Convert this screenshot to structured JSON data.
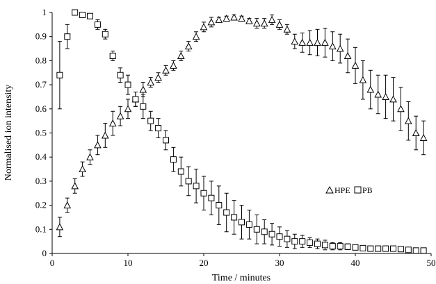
{
  "chart_data": {
    "type": "scatter",
    "title": "",
    "xlabel": "Time / minutes",
    "ylabel": "Normalised ion intensity",
    "xlim": [
      0,
      50
    ],
    "ylim": [
      0,
      1
    ],
    "x_ticks": [
      0,
      10,
      20,
      30,
      40,
      50
    ],
    "y_ticks": [
      0,
      0.1,
      0.2,
      0.3,
      0.4,
      0.5,
      0.6,
      0.7,
      0.8,
      0.9,
      1
    ],
    "grid": false,
    "legend_position": "right-middle",
    "series": [
      {
        "name": "HPE",
        "marker": "triangle",
        "x": [
          1,
          2,
          3,
          4,
          5,
          6,
          7,
          8,
          9,
          10,
          11,
          12,
          13,
          14,
          15,
          16,
          17,
          18,
          19,
          20,
          21,
          22,
          23,
          24,
          25,
          26,
          27,
          28,
          29,
          30,
          31,
          32,
          33,
          34,
          35,
          36,
          37,
          38,
          39,
          40,
          41,
          42,
          43,
          44,
          45,
          46,
          47,
          48,
          49
        ],
        "y": [
          0.11,
          0.2,
          0.28,
          0.35,
          0.4,
          0.45,
          0.49,
          0.54,
          0.57,
          0.6,
          0.64,
          0.68,
          0.71,
          0.73,
          0.76,
          0.78,
          0.82,
          0.86,
          0.9,
          0.94,
          0.96,
          0.97,
          0.975,
          0.98,
          0.975,
          0.965,
          0.955,
          0.955,
          0.97,
          0.95,
          0.93,
          0.88,
          0.875,
          0.875,
          0.875,
          0.875,
          0.86,
          0.85,
          0.82,
          0.78,
          0.72,
          0.68,
          0.66,
          0.65,
          0.64,
          0.6,
          0.55,
          0.5,
          0.48
        ],
        "err": [
          0.04,
          0.03,
          0.03,
          0.03,
          0.03,
          0.04,
          0.05,
          0.05,
          0.04,
          0.04,
          0.03,
          0.03,
          0.02,
          0.02,
          0.02,
          0.02,
          0.02,
          0.02,
          0.02,
          0.02,
          0.02,
          0.01,
          0.01,
          0.01,
          0.01,
          0.01,
          0.02,
          0.02,
          0.02,
          0.02,
          0.02,
          0.03,
          0.04,
          0.05,
          0.055,
          0.06,
          0.06,
          0.06,
          0.07,
          0.075,
          0.08,
          0.08,
          0.08,
          0.09,
          0.09,
          0.09,
          0.08,
          0.07,
          0.07
        ]
      },
      {
        "name": "PB",
        "marker": "square",
        "x": [
          1,
          2,
          3,
          4,
          5,
          6,
          7,
          8,
          9,
          10,
          11,
          12,
          13,
          14,
          15,
          16,
          17,
          18,
          19,
          20,
          21,
          22,
          23,
          24,
          25,
          26,
          27,
          28,
          29,
          30,
          31,
          32,
          33,
          34,
          35,
          36,
          37,
          38,
          39,
          40,
          41,
          42,
          43,
          44,
          45,
          46,
          47,
          48,
          49
        ],
        "y": [
          0.74,
          0.9,
          1.0,
          0.99,
          0.985,
          0.95,
          0.91,
          0.82,
          0.74,
          0.7,
          0.64,
          0.61,
          0.55,
          0.52,
          0.47,
          0.39,
          0.34,
          0.3,
          0.28,
          0.25,
          0.23,
          0.2,
          0.17,
          0.15,
          0.13,
          0.12,
          0.1,
          0.09,
          0.08,
          0.07,
          0.06,
          0.05,
          0.05,
          0.045,
          0.04,
          0.035,
          0.03,
          0.03,
          0.028,
          0.025,
          0.022,
          0.02,
          0.02,
          0.02,
          0.02,
          0.018,
          0.015,
          0.012,
          0.012
        ],
        "err": [
          0.14,
          0.05,
          0.01,
          0.01,
          0.01,
          0.02,
          0.02,
          0.02,
          0.03,
          0.04,
          0.03,
          0.05,
          0.04,
          0.04,
          0.04,
          0.05,
          0.06,
          0.06,
          0.07,
          0.07,
          0.07,
          0.08,
          0.08,
          0.07,
          0.07,
          0.06,
          0.06,
          0.05,
          0.045,
          0.04,
          0.035,
          0.03,
          0.025,
          0.02,
          0.02,
          0.02,
          0.015,
          0.015,
          0.012,
          0.01,
          0.01,
          0.01,
          0.008,
          0.008,
          0.008,
          0.008,
          0.006,
          0.006,
          0.006
        ]
      }
    ]
  }
}
